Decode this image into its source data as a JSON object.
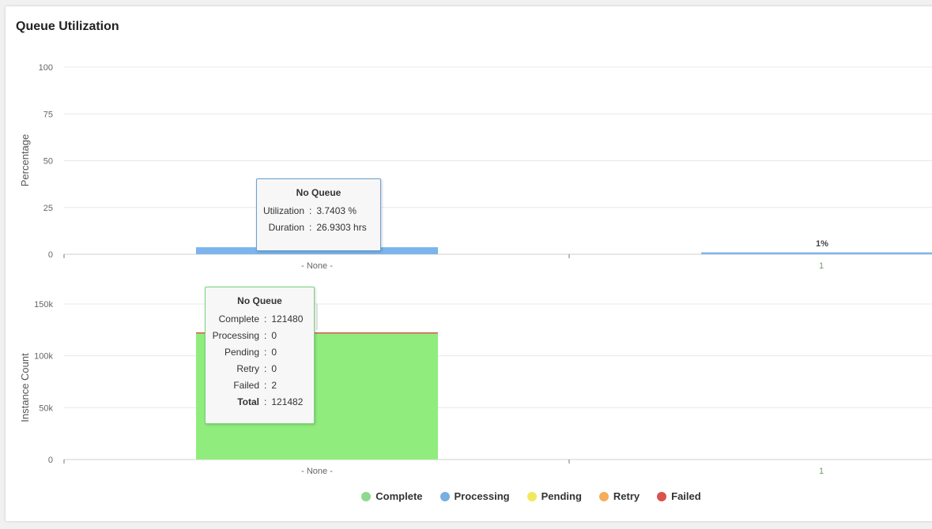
{
  "title": "Queue Utilization",
  "chart_data": [
    {
      "type": "bar",
      "ylabel": "Percentage",
      "ylim": [
        0,
        100
      ],
      "yticks": [
        "100",
        "75",
        "50",
        "25",
        "0"
      ],
      "categories": [
        "- None -",
        "1"
      ],
      "series": [
        {
          "name": "Processing",
          "values": [
            3.7403,
            1
          ]
        }
      ],
      "data_labels": [
        "3.7403%",
        "1%"
      ],
      "grid": true
    },
    {
      "type": "bar",
      "ylabel": "Instance Count",
      "ylim": [
        0,
        150000
      ],
      "yticks": [
        "150k",
        "100k",
        "50k",
        "0"
      ],
      "categories": [
        "- None -",
        "1"
      ],
      "series": [
        {
          "name": "Complete",
          "values": [
            121480,
            0
          ]
        },
        {
          "name": "Processing",
          "values": [
            0,
            0
          ]
        },
        {
          "name": "Pending",
          "values": [
            0,
            0
          ]
        },
        {
          "name": "Retry",
          "values": [
            0,
            0
          ]
        },
        {
          "name": "Failed",
          "values": [
            2,
            0
          ]
        }
      ],
      "grid": true
    }
  ],
  "colors": {
    "complete": "#90ed7d",
    "processing": "#7cb5ec",
    "pending": "#f1e85a",
    "retry": "#f7a35c",
    "failed": "#d9534f"
  },
  "legend": [
    {
      "label": "Complete",
      "color": "#8fd88f"
    },
    {
      "label": "Processing",
      "color": "#7aaee0"
    },
    {
      "label": "Pending",
      "color": "#f2e85c"
    },
    {
      "label": "Retry",
      "color": "#f5ad5a"
    },
    {
      "label": "Failed",
      "color": "#d9534f"
    }
  ],
  "tooltip_top": {
    "title": "No Queue",
    "rows": [
      {
        "key": "Utilization",
        "value": "3.7403 %"
      },
      {
        "key": "Duration",
        "value": "26.9303 hrs"
      }
    ]
  },
  "tooltip_bottom": {
    "title": "No Queue",
    "rows": [
      {
        "key": "Complete",
        "value": "121480"
      },
      {
        "key": "Processing",
        "value": "0"
      },
      {
        "key": "Pending",
        "value": "0"
      },
      {
        "key": "Retry",
        "value": "0"
      },
      {
        "key": "Failed",
        "value": "2"
      }
    ],
    "total_key": "Total",
    "total_value": "121482"
  }
}
